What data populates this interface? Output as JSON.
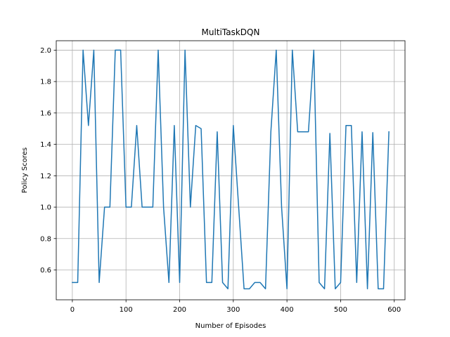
{
  "chart_data": {
    "type": "line",
    "title": "MultiTaskDQN",
    "xlabel": "Number of Episodes",
    "ylabel": "Policy Scores",
    "xlim": [
      -30,
      620
    ],
    "ylim": [
      0.41,
      2.06
    ],
    "xticks": [
      0,
      100,
      200,
      300,
      400,
      500,
      600
    ],
    "yticks": [
      0.6,
      0.8,
      1.0,
      1.2,
      1.4,
      1.6,
      1.8,
      2.0
    ],
    "xtick_labels": [
      "0",
      "100",
      "200",
      "300",
      "400",
      "500",
      "600"
    ],
    "ytick_labels": [
      "0.6",
      "0.8",
      "1.0",
      "1.2",
      "1.4",
      "1.6",
      "1.8",
      "2.0"
    ],
    "grid": true,
    "line_color": "#1f77b4",
    "series": [
      {
        "x": [
          0,
          10,
          20,
          30,
          40,
          50,
          60,
          70,
          80,
          90,
          100,
          110,
          120,
          130,
          140,
          150,
          160,
          170,
          180,
          190,
          200,
          210,
          220,
          230,
          240,
          250,
          260,
          270,
          280,
          290,
          300,
          310,
          320,
          330,
          340,
          350,
          360,
          370,
          380,
          390,
          400,
          410,
          420,
          430,
          440,
          450,
          460,
          470,
          480,
          490,
          500,
          510,
          520,
          530,
          540,
          550,
          560,
          570,
          580,
          590
        ],
        "values": [
          0.52,
          0.52,
          2.0,
          1.52,
          2.0,
          0.52,
          1.0,
          1.0,
          2.0,
          2.0,
          1.0,
          1.0,
          1.52,
          1.0,
          1.0,
          1.0,
          2.0,
          1.0,
          0.52,
          1.52,
          0.52,
          2.0,
          1.0,
          1.52,
          1.5,
          0.52,
          0.52,
          1.48,
          0.52,
          0.48,
          1.52,
          1.0,
          0.48,
          0.48,
          0.52,
          0.52,
          0.48,
          1.48,
          2.0,
          1.0,
          0.48,
          2.0,
          1.48,
          1.48,
          1.48,
          2.0,
          0.52,
          0.48,
          1.47,
          0.48,
          0.52,
          1.52,
          1.52,
          0.52,
          1.48,
          0.48,
          1.475,
          0.48,
          0.48,
          1.48
        ]
      }
    ]
  }
}
